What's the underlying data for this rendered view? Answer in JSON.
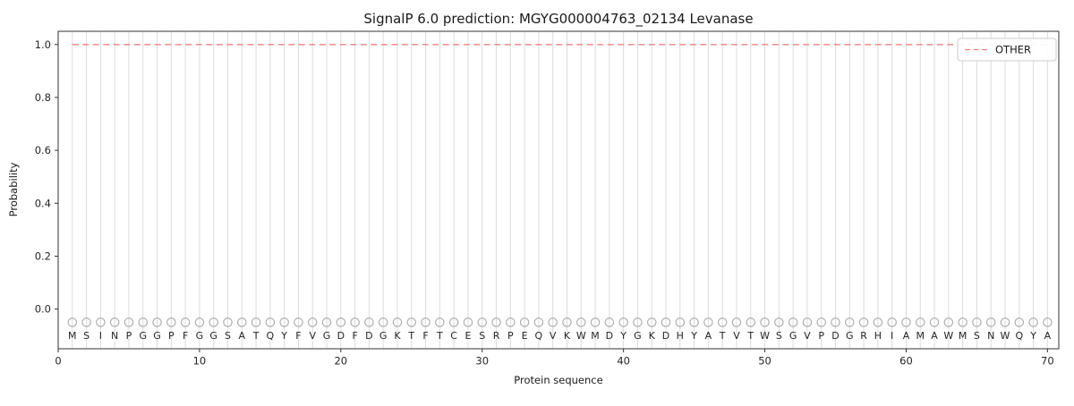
{
  "title": "SignalP 6.0 prediction: MGYG000004763_02134 Levanase",
  "colors": {
    "other_line": "#f08080",
    "gridline": "#dcdcdc",
    "marker_stroke": "#a8a8a8",
    "spine": "#333333",
    "tick": "#333333"
  },
  "chart_data": {
    "type": "line",
    "title": "SignalP 6.0 prediction: MGYG000004763_02134 Levanase",
    "xlabel": "Protein sequence",
    "ylabel": "Probability",
    "xlim": [
      0,
      70.8
    ],
    "ylim": [
      -0.15,
      1.05
    ],
    "xticks": [
      0,
      10,
      20,
      30,
      40,
      50,
      60,
      70
    ],
    "yticks": [
      0.0,
      0.2,
      0.4,
      0.6,
      0.8,
      1.0
    ],
    "grid": "light vertical gridline at each residue position, horizontal grid off",
    "legend": {
      "position": "upper-right",
      "entries": [
        {
          "label": "OTHER",
          "color": "#f08080",
          "line_style": "dashed"
        }
      ]
    },
    "series": [
      {
        "name": "OTHER",
        "line_style": "dashed",
        "color": "#f08080",
        "constant_value": 1.0,
        "x_start": 1,
        "x_end": 70
      }
    ],
    "residue_marker_y": -0.05,
    "residue_marker_shape": "open-circle",
    "sequence": [
      "M",
      "S",
      "I",
      "N",
      "P",
      "G",
      "G",
      "P",
      "F",
      "G",
      "G",
      "S",
      "A",
      "T",
      "Q",
      "Y",
      "F",
      "V",
      "G",
      "D",
      "F",
      "D",
      "G",
      "K",
      "T",
      "F",
      "T",
      "C",
      "E",
      "S",
      "R",
      "P",
      "E",
      "Q",
      "V",
      "K",
      "W",
      "M",
      "D",
      "Y",
      "G",
      "K",
      "D",
      "H",
      "Y",
      "A",
      "T",
      "V",
      "T",
      "W",
      "S",
      "G",
      "V",
      "P",
      "D",
      "G",
      "R",
      "H",
      "I",
      "A",
      "M",
      "A",
      "W",
      "M",
      "S",
      "N",
      "W",
      "Q",
      "Y",
      "A"
    ]
  }
}
